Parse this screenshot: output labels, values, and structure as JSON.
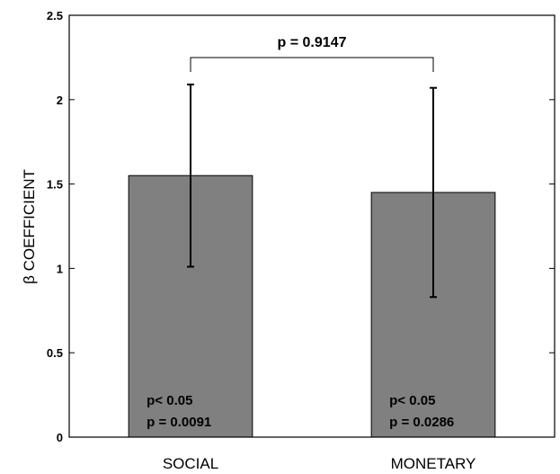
{
  "chart_data": {
    "type": "bar",
    "ylabel": "β COEFFICIENT",
    "xlabel": "",
    "ylim": [
      0,
      2.5
    ],
    "yticks": [
      0,
      0.5,
      1,
      1.5,
      2,
      2.5
    ],
    "ytick_labels": [
      "0",
      "0.5",
      "1",
      "1.5",
      "2",
      "2.5"
    ],
    "grid": false,
    "categories": [
      "SOCIAL",
      "MONETARY"
    ],
    "values": [
      1.55,
      1.45
    ],
    "error_low": [
      1.01,
      0.83
    ],
    "error_high": [
      2.09,
      2.07
    ],
    "bar_color": "#808080",
    "bar_annotations": [
      [
        "p< 0.05",
        "p = 0.0091"
      ],
      [
        "p< 0.05",
        "p = 0.0286"
      ]
    ],
    "comparison": {
      "label": "p = 0.9147",
      "between": [
        0,
        1
      ]
    }
  }
}
